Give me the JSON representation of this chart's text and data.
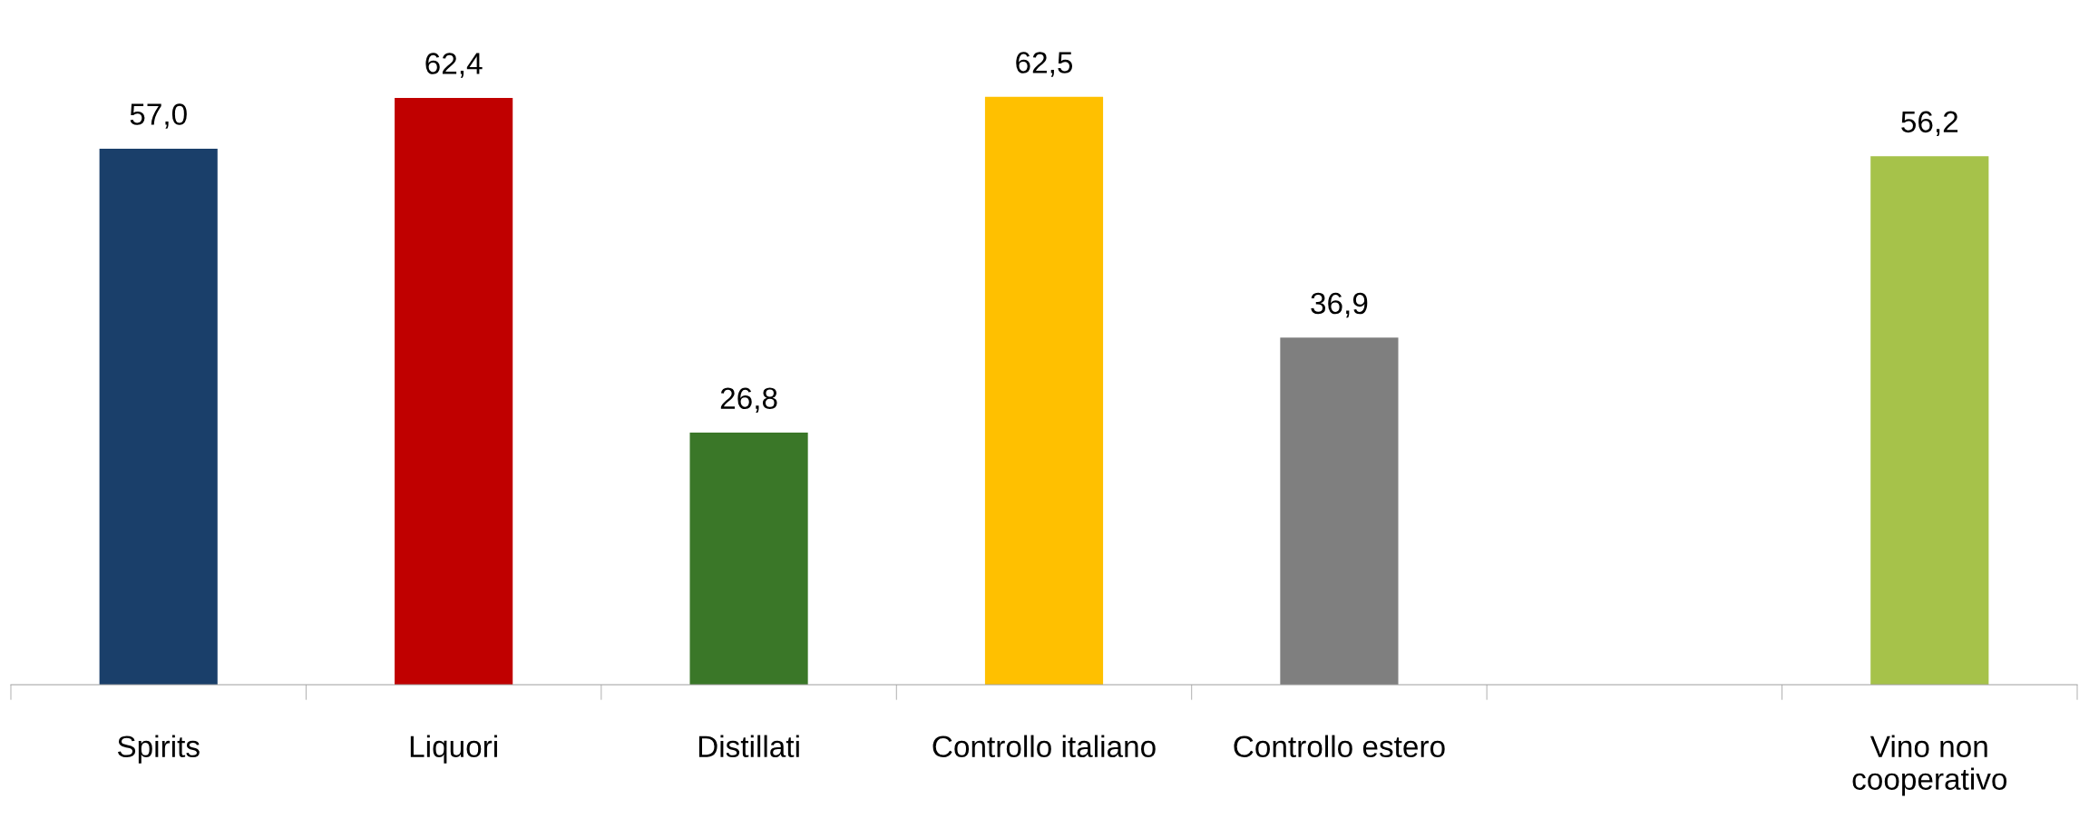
{
  "chart_data": {
    "type": "bar",
    "categories": [
      "Spirits",
      "Liquori",
      "Distillati",
      "Controllo italiano",
      "Controllo estero",
      null,
      "Vino non\ncooperativo"
    ],
    "values": [
      57.0,
      62.4,
      26.8,
      62.5,
      36.9,
      null,
      56.2
    ],
    "colors": [
      "#1a3f6a",
      "#c00000",
      "#3a7728",
      "#ffc000",
      "#7f7f7f",
      null,
      "#a6c24a"
    ],
    "value_labels": [
      "57,0",
      "62,4",
      "26,8",
      "62,5",
      "36,9",
      null,
      "56,2"
    ],
    "grid": false,
    "legend": false
  }
}
